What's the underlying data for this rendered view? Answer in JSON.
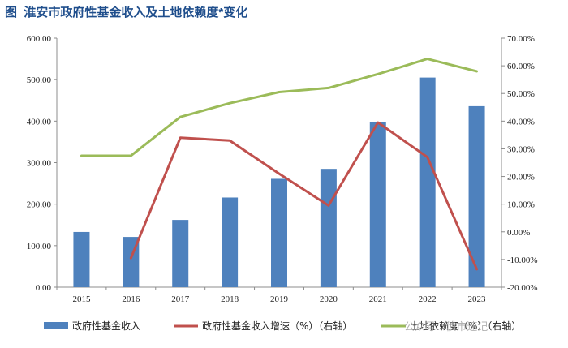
{
  "title": {
    "label": "图",
    "text": "淮安市政府性基金收入及土地依赖度*变化"
  },
  "watermark": "公众号 · 债市速记",
  "colors": {
    "bars": "#4e81bd",
    "growth_line": "#c0504d",
    "dependency_line": "#9bbb59",
    "title": "#1f4e8c",
    "axis": "#8c8c8c"
  },
  "chart_data": {
    "type": "bar+line",
    "title": "淮安市政府性基金收入及土地依赖度*变化",
    "categories": [
      "2015",
      "2016",
      "2017",
      "2018",
      "2019",
      "2020",
      "2021",
      "2022",
      "2023"
    ],
    "y_left": {
      "range": [
        0,
        600
      ],
      "ticks": [
        0,
        100,
        200,
        300,
        400,
        500,
        600
      ],
      "tick_labels": [
        "0.00",
        "100.00",
        "200.00",
        "300.00",
        "400.00",
        "500.00",
        "600.00"
      ]
    },
    "y_right": {
      "range": [
        -20,
        70
      ],
      "ticks": [
        -20,
        -10,
        0,
        10,
        20,
        30,
        40,
        50,
        60,
        70
      ],
      "tick_labels": [
        "-20.00%",
        "-10.00%",
        "0.00%",
        "10.00%",
        "20.00%",
        "30.00%",
        "40.00%",
        "50.00%",
        "60.00%",
        "70.00%"
      ]
    },
    "series": [
      {
        "name": "政府性基金收入",
        "type": "bar",
        "axis": "left",
        "values": [
          133,
          121,
          162,
          216,
          261,
          285,
          398,
          505,
          436
        ]
      },
      {
        "name": "政府性基金收入增速（%）（右轴）",
        "type": "line",
        "axis": "right",
        "values": [
          null,
          -9.5,
          34,
          33,
          21,
          9.5,
          39.5,
          27,
          -13.5
        ]
      },
      {
        "name": "土地依赖度（%）（右轴）",
        "type": "line",
        "axis": "right",
        "values": [
          27.5,
          27.5,
          41.5,
          46.5,
          50.5,
          52,
          57,
          62.5,
          58
        ]
      }
    ],
    "legend": {
      "position": "bottom",
      "items": [
        "政府性基金收入",
        "政府性基金收入增速（%）（右轴）",
        "土地依赖度（%）（右轴）"
      ]
    }
  }
}
